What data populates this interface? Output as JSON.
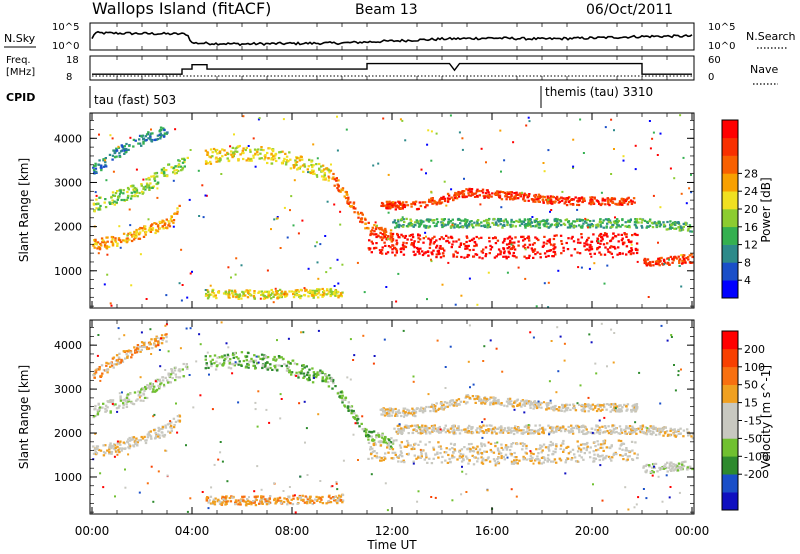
{
  "header": {
    "title": "Wallops Island (fitACF)",
    "beam": "Beam 13",
    "date": "06/Oct/2011"
  },
  "nsky_panel": {
    "label": "N.Sky",
    "right_label": "N.Search",
    "left_ticks": [
      "10^5",
      "10^0"
    ],
    "right_ticks": [
      "10^5",
      "10^0"
    ]
  },
  "freq_panel": {
    "label_line1": "Freq.",
    "label_line2": "[MHz]",
    "right_label": "Nave",
    "left_ticks": [
      "18",
      "8"
    ],
    "right_ticks": [
      "60",
      "0"
    ]
  },
  "cpid": {
    "label": "CPID",
    "mode1": "tau (fast) 503",
    "mode2": "themis (tau) 3310"
  },
  "colors": {
    "power": [
      "#0000ff",
      "#1a4fc8",
      "#2d8a8a",
      "#34b050",
      "#8ccc30",
      "#f0e020",
      "#f8a000",
      "#f86000",
      "#f83000",
      "#ff0000"
    ],
    "velocity": [
      "#1010c0",
      "#1a4fc8",
      "#2e8a2e",
      "#70c030",
      "#c8c8c0",
      "#c8c8c0",
      "#f0a020",
      "#f87010",
      "#f84000",
      "#ff0000"
    ]
  },
  "chart_data": [
    {
      "type": "line",
      "name": "N.Sky",
      "x": [
        0,
        0.1,
        3.8,
        4.0,
        6,
        10,
        12,
        14,
        16,
        18,
        20,
        22,
        24
      ],
      "values": [
        2.0,
        3.2,
        3.0,
        1.2,
        1.0,
        1.2,
        1.6,
        2.0,
        2.2,
        2.0,
        2.2,
        2.5,
        2.6
      ],
      "ylim": [
        0,
        5
      ]
    },
    {
      "type": "line",
      "name": "Freq. [MHz]",
      "x": [
        0,
        3.6,
        3.6,
        4.0,
        4.0,
        4.6,
        4.6,
        11.0,
        11.0,
        14.3,
        14.5,
        14.7,
        22.0,
        22.0,
        24
      ],
      "values": [
        10.2,
        10.2,
        12.5,
        12.5,
        14.5,
        14.5,
        12.5,
        12.5,
        15,
        15,
        12,
        15,
        15,
        10.2,
        10.2
      ],
      "ylim": [
        8,
        18
      ]
    },
    {
      "type": "scatter",
      "title": "Power",
      "xlabel": "",
      "ylabel": "Slant Range [km]",
      "xlim": [
        0,
        24
      ],
      "ylim": [
        180,
        4550
      ],
      "ytick_labels": [
        "1000",
        "2000",
        "3000",
        "4000"
      ],
      "colorbar_label": "Power [dB]",
      "colorbar_ticks": [
        "4",
        "8",
        "12",
        "16",
        "20",
        "24",
        "28"
      ],
      "bands": [
        {
          "x": [
            0,
            1,
            2,
            3,
            3.5
          ],
          "y": [
            1600,
            1700,
            1900,
            2100,
            2400
          ],
          "width": 250,
          "level": 6
        },
        {
          "x": [
            0,
            1,
            2,
            3,
            3.8
          ],
          "y": [
            2500,
            2700,
            2900,
            3300,
            3500
          ],
          "width": 300,
          "level": 4
        },
        {
          "x": [
            0,
            1,
            2,
            3
          ],
          "y": [
            3300,
            3700,
            4000,
            4200
          ],
          "width": 250,
          "level": 2
        },
        {
          "x": [
            4.5,
            6,
            7.5,
            8.5,
            9.5
          ],
          "y": [
            3600,
            3700,
            3600,
            3400,
            3200
          ],
          "width": 350,
          "level": 5
        },
        {
          "x": [
            9.5,
            10,
            10.5,
            11,
            12
          ],
          "y": [
            3200,
            2800,
            2400,
            2000,
            1800
          ],
          "width": 250,
          "level": 7
        },
        {
          "x": [
            11,
            13,
            15,
            17,
            19,
            21.8
          ],
          "y": [
            1650,
            1600,
            1550,
            1550,
            1600,
            1650
          ],
          "width": 500,
          "level": 9
        },
        {
          "x": [
            11.5,
            13,
            15,
            17,
            19,
            21.8
          ],
          "y": [
            2500,
            2500,
            2800,
            2700,
            2600,
            2600
          ],
          "width": 180,
          "level": 8
        },
        {
          "x": [
            12,
            16,
            22,
            24
          ],
          "y": [
            2100,
            2100,
            2100,
            2000
          ],
          "width": 200,
          "level": 3
        },
        {
          "x": [
            22,
            23,
            24
          ],
          "y": [
            1200,
            1250,
            1300
          ],
          "width": 200,
          "level": 8
        },
        {
          "x": [
            4.5,
            6,
            8,
            10
          ],
          "y": [
            500,
            480,
            500,
            520
          ],
          "width": 200,
          "level": 5
        }
      ]
    },
    {
      "type": "scatter",
      "title": "Velocity",
      "xlabel": "Time UT",
      "ylabel": "Slant Range [km]",
      "xlim": [
        0,
        24
      ],
      "ylim": [
        180,
        4550
      ],
      "ytick_labels": [
        "1000",
        "2000",
        "3000",
        "4000"
      ],
      "xtick_labels": [
        "00:00",
        "04:00",
        "08:00",
        "12:00",
        "16:00",
        "20:00",
        "00:00"
      ],
      "colorbar_label": "Velocity [m s^-1]",
      "colorbar_ticks": [
        "200",
        "100",
        "50",
        "15",
        "-15",
        "-50",
        "-100",
        "-200"
      ],
      "bands": [
        {
          "x": [
            0,
            1,
            2,
            3,
            3.5
          ],
          "y": [
            1600,
            1700,
            1900,
            2100,
            2400
          ],
          "width": 250,
          "level": 5
        },
        {
          "x": [
            0,
            1,
            2,
            3,
            3.8
          ],
          "y": [
            2500,
            2700,
            2900,
            3300,
            3500
          ],
          "width": 300,
          "level": 4
        },
        {
          "x": [
            0,
            1,
            2,
            3
          ],
          "y": [
            3300,
            3700,
            4000,
            4200
          ],
          "width": 250,
          "level": 6
        },
        {
          "x": [
            4.5,
            6,
            7.5,
            8.5,
            9.5
          ],
          "y": [
            3600,
            3700,
            3600,
            3400,
            3200
          ],
          "width": 350,
          "level": 3
        },
        {
          "x": [
            9.5,
            10,
            10.5,
            11,
            12
          ],
          "y": [
            3200,
            2800,
            2400,
            2000,
            1800
          ],
          "width": 250,
          "level": 3
        },
        {
          "x": [
            11,
            13,
            15,
            17,
            19,
            21.8
          ],
          "y": [
            1650,
            1600,
            1550,
            1550,
            1600,
            1650
          ],
          "width": 500,
          "level": 5
        },
        {
          "x": [
            11.5,
            13,
            15,
            17,
            19,
            21.8
          ],
          "y": [
            2500,
            2500,
            2800,
            2700,
            2600,
            2600
          ],
          "width": 180,
          "level": 5
        },
        {
          "x": [
            12,
            16,
            22,
            24
          ],
          "y": [
            2100,
            2100,
            2100,
            2000
          ],
          "width": 200,
          "level": 5
        },
        {
          "x": [
            22,
            23,
            24
          ],
          "y": [
            1200,
            1250,
            1300
          ],
          "width": 200,
          "level": 4
        },
        {
          "x": [
            4.5,
            6,
            8,
            10
          ],
          "y": [
            500,
            480,
            500,
            520
          ],
          "width": 200,
          "level": 6
        }
      ]
    }
  ]
}
